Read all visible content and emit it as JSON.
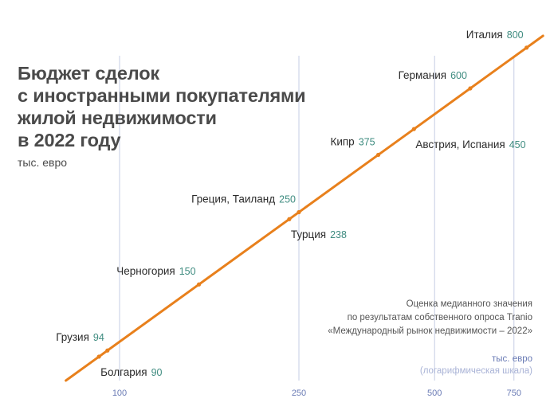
{
  "chart_data": {
    "type": "line",
    "title_lines": [
      "Бюджет сделок",
      "с иностранными покупателями",
      "жилой недвижимости",
      "в 2022 году"
    ],
    "unit_label": "тыс. евро",
    "x_scale": "log",
    "x_ticks": [
      100,
      250,
      500,
      750
    ],
    "axis_unit_lines": [
      "тыс. евро",
      "(логарифмическая шкала)"
    ],
    "note_lines": [
      "Оценка медианного значения",
      "по результатам собственного опроса Tranio",
      "«Международный рынок недвижимости – 2022»"
    ],
    "points": [
      {
        "name": "Болгария",
        "value": 90,
        "label_side": "below"
      },
      {
        "name": "Грузия",
        "value": 94,
        "label_side": "above"
      },
      {
        "name": "Черногория",
        "value": 150,
        "label_side": "above"
      },
      {
        "name": "Турция",
        "value": 238,
        "label_side": "below"
      },
      {
        "name": "Греция, Таиланд",
        "value": 250,
        "label_side": "above"
      },
      {
        "name": "Кипр",
        "value": 375,
        "label_side": "above"
      },
      {
        "name": "Австрия, Испания",
        "value": 450,
        "label_side": "below"
      },
      {
        "name": "Германия",
        "value": 600,
        "label_side": "above"
      },
      {
        "name": "Италия",
        "value": 800,
        "label_side": "above"
      }
    ],
    "colors": {
      "line": "#e8801c",
      "value": "#3f8c80",
      "grid": "#c5cde4",
      "tick": "#6a7bb5"
    }
  }
}
